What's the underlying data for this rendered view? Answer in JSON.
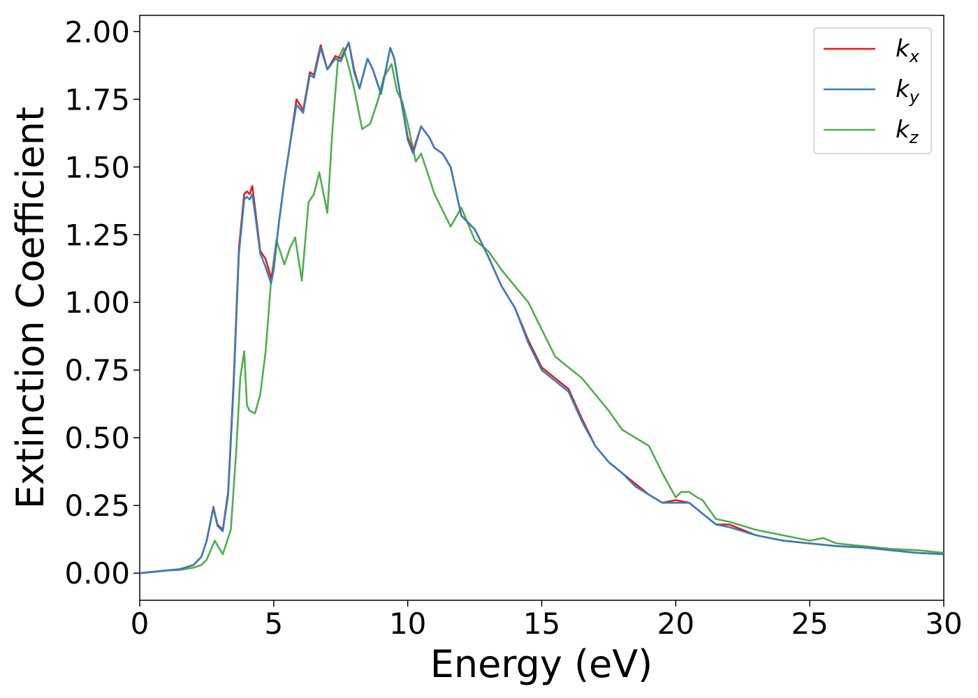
{
  "chart_data": {
    "type": "line",
    "xlabel": "Energy (eV)",
    "ylabel": "Extinction Coefficient",
    "xlim": [
      0,
      30
    ],
    "ylim": [
      -0.1,
      2.06
    ],
    "xticks": [
      "0",
      "5",
      "10",
      "15",
      "20",
      "25",
      "30"
    ],
    "yticks": [
      "0.00",
      "0.25",
      "0.50",
      "0.75",
      "1.00",
      "1.25",
      "1.50",
      "1.75",
      "2.00"
    ],
    "grid": false,
    "legend_position": "top-right",
    "series": [
      {
        "name": "k",
        "sub": "x",
        "color": "#e41a1c",
        "x": [
          0,
          1,
          1.5,
          2,
          2.3,
          2.5,
          2.75,
          2.9,
          3.1,
          3.3,
          3.5,
          3.7,
          3.9,
          4.0,
          4.1,
          4.2,
          4.3,
          4.5,
          4.7,
          4.9,
          5.0,
          5.2,
          5.4,
          5.6,
          5.85,
          6.1,
          6.35,
          6.5,
          6.75,
          7.0,
          7.3,
          7.5,
          7.8,
          8.0,
          8.2,
          8.5,
          8.7,
          9.0,
          9.35,
          9.5,
          9.8,
          10.0,
          10.2,
          10.5,
          10.8,
          11.0,
          11.3,
          11.6,
          12.0,
          12.5,
          13.0,
          13.5,
          14.0,
          14.5,
          15.0,
          15.5,
          16.0,
          16.5,
          17.0,
          17.5,
          18.0,
          18.5,
          19.0,
          19.5,
          20.0,
          20.5,
          21.0,
          21.5,
          22.0,
          23.0,
          24.0,
          25.0,
          26.0,
          27.0,
          28.0,
          29.0,
          30.0
        ],
        "y": [
          0.0,
          0.01,
          0.015,
          0.03,
          0.06,
          0.12,
          0.245,
          0.18,
          0.16,
          0.3,
          0.7,
          1.2,
          1.4,
          1.41,
          1.4,
          1.43,
          1.35,
          1.19,
          1.16,
          1.09,
          1.13,
          1.3,
          1.45,
          1.58,
          1.75,
          1.71,
          1.85,
          1.84,
          1.95,
          1.86,
          1.91,
          1.9,
          1.96,
          1.86,
          1.79,
          1.9,
          1.86,
          1.77,
          1.94,
          1.9,
          1.72,
          1.61,
          1.56,
          1.65,
          1.61,
          1.57,
          1.55,
          1.5,
          1.32,
          1.27,
          1.17,
          1.06,
          0.98,
          0.86,
          0.76,
          0.72,
          0.68,
          0.57,
          0.47,
          0.41,
          0.37,
          0.33,
          0.29,
          0.26,
          0.27,
          0.26,
          0.22,
          0.18,
          0.18,
          0.14,
          0.12,
          0.11,
          0.1,
          0.095,
          0.085,
          0.075,
          0.07
        ]
      },
      {
        "name": "k",
        "sub": "y",
        "color": "#377eb8",
        "x": [
          0,
          1,
          1.5,
          2,
          2.3,
          2.5,
          2.75,
          2.9,
          3.1,
          3.3,
          3.5,
          3.7,
          3.9,
          4.0,
          4.1,
          4.2,
          4.3,
          4.5,
          4.7,
          4.9,
          5.0,
          5.2,
          5.4,
          5.6,
          5.85,
          6.1,
          6.35,
          6.5,
          6.75,
          7.0,
          7.3,
          7.5,
          7.8,
          8.0,
          8.2,
          8.5,
          8.7,
          9.0,
          9.35,
          9.5,
          9.8,
          10.0,
          10.2,
          10.5,
          10.8,
          11.0,
          11.3,
          11.6,
          12.0,
          12.5,
          13.0,
          13.5,
          14.0,
          14.5,
          15.0,
          15.5,
          16.0,
          16.5,
          17.0,
          17.5,
          18.0,
          18.5,
          19.0,
          19.5,
          20.0,
          20.5,
          21.0,
          21.5,
          22.0,
          23.0,
          24.0,
          25.0,
          26.0,
          27.0,
          28.0,
          29.0,
          30.0
        ],
        "y": [
          0.0,
          0.01,
          0.015,
          0.03,
          0.06,
          0.12,
          0.24,
          0.175,
          0.155,
          0.29,
          0.68,
          1.18,
          1.38,
          1.39,
          1.38,
          1.4,
          1.33,
          1.18,
          1.13,
          1.07,
          1.12,
          1.3,
          1.45,
          1.58,
          1.73,
          1.7,
          1.84,
          1.83,
          1.94,
          1.86,
          1.9,
          1.89,
          1.96,
          1.85,
          1.79,
          1.9,
          1.86,
          1.77,
          1.94,
          1.9,
          1.72,
          1.6,
          1.55,
          1.65,
          1.61,
          1.57,
          1.55,
          1.5,
          1.32,
          1.27,
          1.17,
          1.06,
          0.98,
          0.85,
          0.75,
          0.71,
          0.67,
          0.56,
          0.47,
          0.41,
          0.37,
          0.32,
          0.29,
          0.26,
          0.26,
          0.26,
          0.22,
          0.18,
          0.17,
          0.14,
          0.12,
          0.11,
          0.1,
          0.095,
          0.085,
          0.075,
          0.07
        ]
      },
      {
        "name": "k",
        "sub": "z",
        "color": "#4daf4a",
        "x": [
          0,
          1,
          1.5,
          2,
          2.3,
          2.5,
          2.8,
          3.1,
          3.4,
          3.6,
          3.75,
          3.9,
          4.0,
          4.1,
          4.3,
          4.5,
          4.7,
          4.9,
          5.1,
          5.4,
          5.6,
          5.8,
          6.05,
          6.3,
          6.5,
          6.7,
          7.0,
          7.2,
          7.4,
          7.6,
          7.8,
          8.0,
          8.3,
          8.6,
          8.9,
          9.1,
          9.4,
          9.6,
          9.8,
          10.0,
          10.3,
          10.5,
          10.8,
          11.0,
          11.3,
          11.6,
          12.0,
          12.5,
          13.0,
          13.5,
          14.0,
          14.5,
          15.0,
          15.5,
          16.0,
          16.5,
          17.0,
          17.5,
          18.0,
          18.5,
          19.0,
          19.5,
          20.0,
          20.2,
          20.5,
          20.8,
          21.0,
          21.5,
          22.0,
          23.0,
          24.0,
          25.0,
          25.5,
          26.0,
          27.0,
          28.0,
          29.0,
          30.0
        ],
        "y": [
          0.0,
          0.01,
          0.012,
          0.02,
          0.03,
          0.05,
          0.12,
          0.07,
          0.16,
          0.45,
          0.72,
          0.82,
          0.62,
          0.6,
          0.59,
          0.66,
          0.82,
          1.08,
          1.23,
          1.14,
          1.2,
          1.24,
          1.08,
          1.37,
          1.4,
          1.48,
          1.33,
          1.65,
          1.9,
          1.94,
          1.87,
          1.79,
          1.64,
          1.66,
          1.75,
          1.83,
          1.88,
          1.78,
          1.74,
          1.66,
          1.52,
          1.55,
          1.46,
          1.4,
          1.34,
          1.28,
          1.35,
          1.23,
          1.19,
          1.12,
          1.06,
          1.0,
          0.9,
          0.8,
          0.76,
          0.72,
          0.66,
          0.6,
          0.53,
          0.5,
          0.47,
          0.37,
          0.28,
          0.3,
          0.3,
          0.28,
          0.27,
          0.2,
          0.19,
          0.16,
          0.14,
          0.12,
          0.13,
          0.11,
          0.1,
          0.09,
          0.085,
          0.075
        ]
      }
    ]
  }
}
